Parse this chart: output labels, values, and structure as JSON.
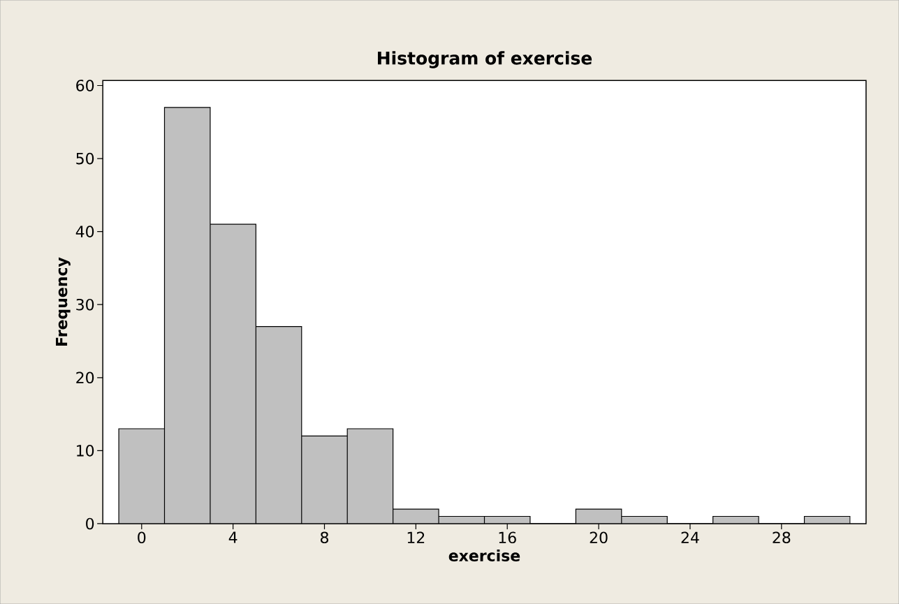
{
  "chart_data": {
    "type": "histogram",
    "title": "Histogram of exercise",
    "xlabel": "exercise",
    "ylabel": "Frequency",
    "bins": [
      -1,
      1,
      3,
      5,
      7,
      9,
      11,
      13,
      15,
      17,
      19,
      21,
      23,
      25,
      27,
      29,
      31
    ],
    "values": [
      13,
      57,
      41,
      27,
      12,
      13,
      2,
      1,
      1,
      0,
      2,
      1,
      0,
      1,
      0,
      1
    ],
    "color": "#c0c0c0",
    "xlim": [
      -1.7,
      31.7
    ],
    "ylim": [
      0,
      60.7
    ],
    "xticks": [
      0,
      4,
      8,
      12,
      16,
      20,
      24,
      28
    ],
    "yticks": [
      0,
      10,
      20,
      30,
      40,
      50,
      60
    ],
    "grid": false
  }
}
